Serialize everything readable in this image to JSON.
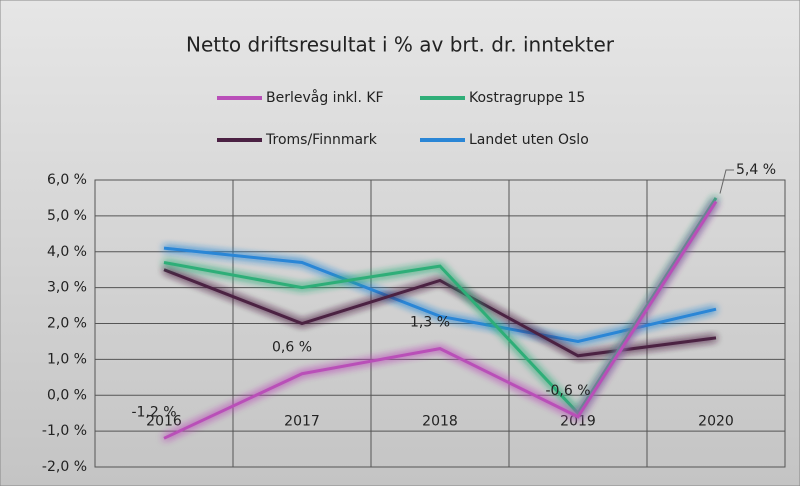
{
  "chart_data": {
    "type": "line",
    "title": "Netto driftsresultat i % av brt. dr. inntekter",
    "categories": [
      "2016",
      "2017",
      "2018",
      "2019",
      "2020"
    ],
    "series": [
      {
        "name": "Berlevåg inkl. KF",
        "color": "#b94fb8",
        "values": [
          -1.2,
          0.6,
          1.3,
          -0.6,
          5.4
        ],
        "value_labels": [
          "-1,2 %",
          "0,6 %",
          "1,3 %",
          "-0,6 %",
          "5,4 %"
        ]
      },
      {
        "name": "Kostragruppe 15",
        "color": "#2fae78",
        "values": [
          3.7,
          3.0,
          3.6,
          -0.5,
          5.5
        ]
      },
      {
        "name": "Troms/Finnmark",
        "color": "#4b2143",
        "values": [
          3.5,
          2.0,
          3.2,
          1.1,
          1.6
        ]
      },
      {
        "name": "Landet uten Oslo",
        "color": "#2a86d6",
        "values": [
          4.1,
          3.7,
          2.2,
          1.5,
          2.4
        ]
      }
    ],
    "ylim": [
      -2,
      6
    ],
    "yticks": [
      {
        "value": -2,
        "label": "-2,0 %"
      },
      {
        "value": -1,
        "label": "-1,0 %"
      },
      {
        "value": 0,
        "label": "0,0 %"
      },
      {
        "value": 1,
        "label": "1,0 %"
      },
      {
        "value": 2,
        "label": "2,0 %"
      },
      {
        "value": 3,
        "label": "3,0 %"
      },
      {
        "value": 4,
        "label": "4,0 %"
      },
      {
        "value": 5,
        "label": "5,0 %"
      },
      {
        "value": 6,
        "label": "6,0 %"
      }
    ],
    "grid": true
  }
}
